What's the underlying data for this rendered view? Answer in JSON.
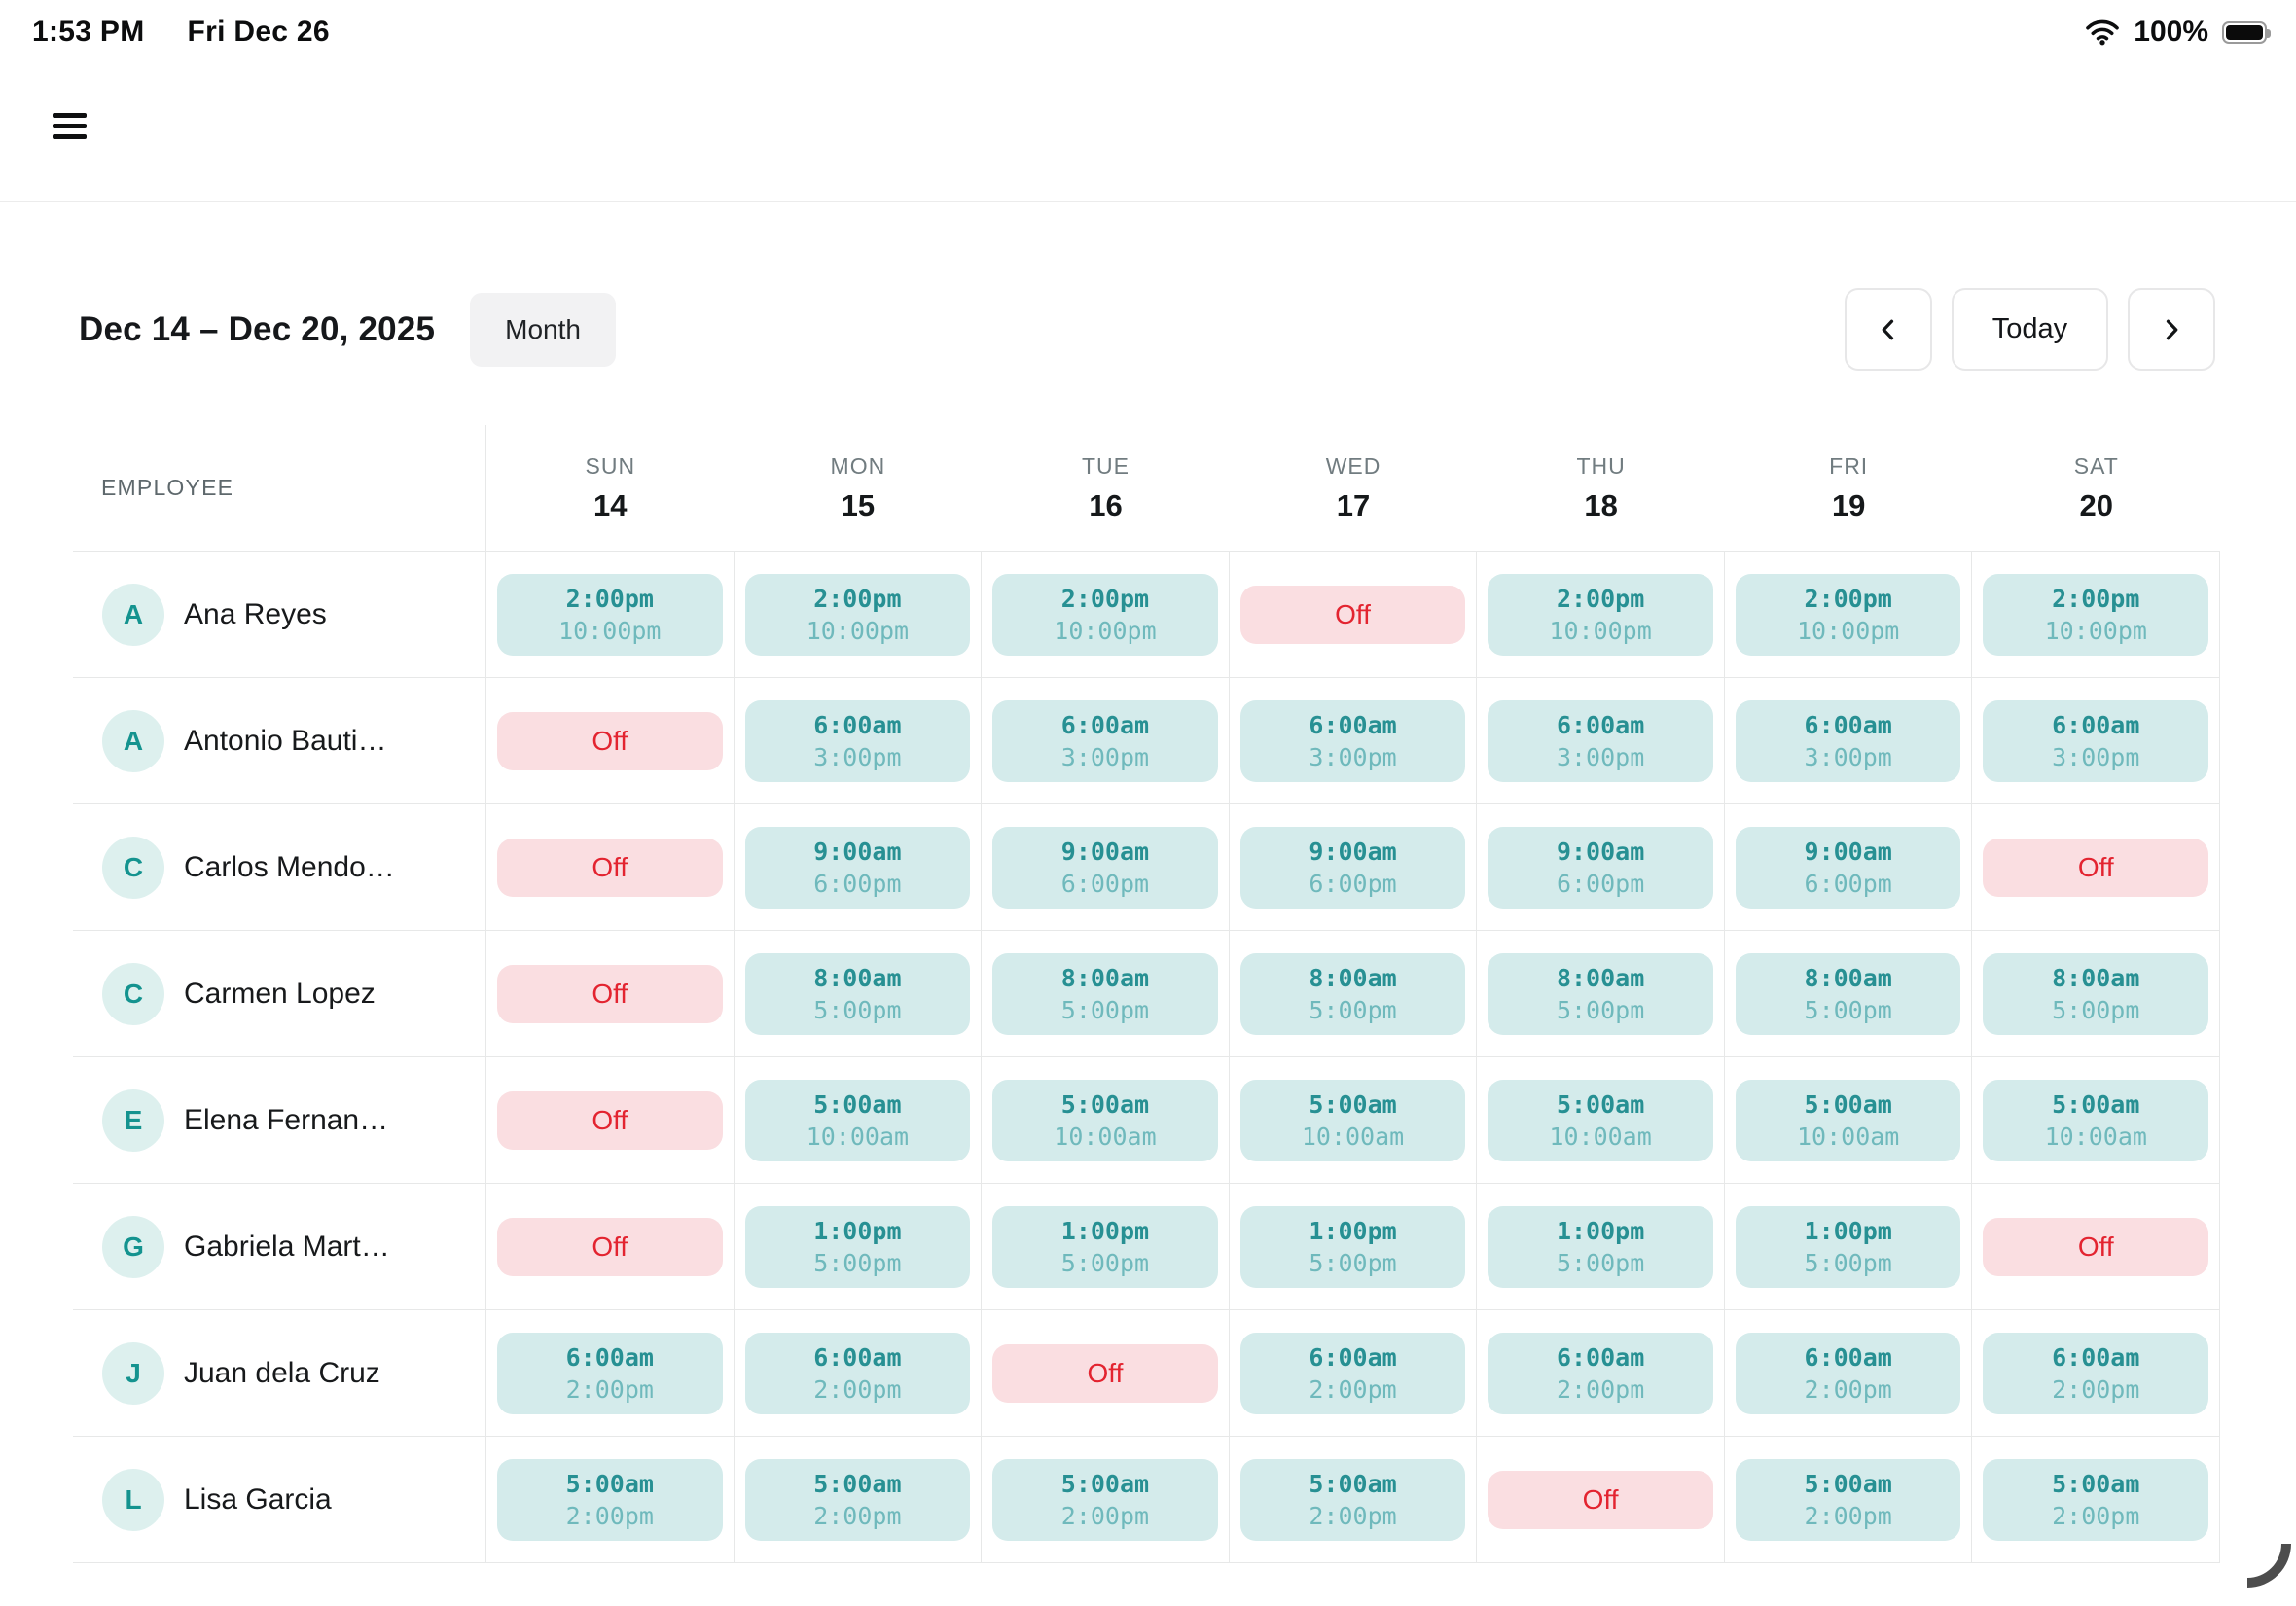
{
  "status": {
    "time": "1:53 PM",
    "date": "Fri Dec 26",
    "battery": "100%"
  },
  "toolbar": {
    "date_range": "Dec 14 – Dec 20, 2025",
    "month_label": "Month",
    "today_label": "Today"
  },
  "colors": {
    "shift_chip_bg": "#d4ebeb",
    "shift_start_text": "#279093",
    "shift_end_text": "#6fb9bc",
    "off_chip_bg": "#fadee1",
    "off_text": "#e32430",
    "avatar_bg": "#ddf0ee",
    "avatar_text": "#14938f"
  },
  "table": {
    "employee_header": "EMPLOYEE",
    "days": [
      {
        "dow": "SUN",
        "num": "14"
      },
      {
        "dow": "MON",
        "num": "15"
      },
      {
        "dow": "TUE",
        "num": "16"
      },
      {
        "dow": "WED",
        "num": "17"
      },
      {
        "dow": "THU",
        "num": "18"
      },
      {
        "dow": "FRI",
        "num": "19"
      },
      {
        "dow": "SAT",
        "num": "20"
      }
    ],
    "off_label": "Off",
    "rows": [
      {
        "initial": "A",
        "name": "Ana Reyes",
        "cells": [
          {
            "type": "shift",
            "start": "2:00pm",
            "end": "10:00pm"
          },
          {
            "type": "shift",
            "start": "2:00pm",
            "end": "10:00pm"
          },
          {
            "type": "shift",
            "start": "2:00pm",
            "end": "10:00pm"
          },
          {
            "type": "off"
          },
          {
            "type": "shift",
            "start": "2:00pm",
            "end": "10:00pm"
          },
          {
            "type": "shift",
            "start": "2:00pm",
            "end": "10:00pm"
          },
          {
            "type": "shift",
            "start": "2:00pm",
            "end": "10:00pm"
          }
        ]
      },
      {
        "initial": "A",
        "name": "Antonio Bauti…",
        "cells": [
          {
            "type": "off"
          },
          {
            "type": "shift",
            "start": "6:00am",
            "end": "3:00pm"
          },
          {
            "type": "shift",
            "start": "6:00am",
            "end": "3:00pm"
          },
          {
            "type": "shift",
            "start": "6:00am",
            "end": "3:00pm"
          },
          {
            "type": "shift",
            "start": "6:00am",
            "end": "3:00pm"
          },
          {
            "type": "shift",
            "start": "6:00am",
            "end": "3:00pm"
          },
          {
            "type": "shift",
            "start": "6:00am",
            "end": "3:00pm"
          }
        ]
      },
      {
        "initial": "C",
        "name": "Carlos Mendo…",
        "cells": [
          {
            "type": "off"
          },
          {
            "type": "shift",
            "start": "9:00am",
            "end": "6:00pm"
          },
          {
            "type": "shift",
            "start": "9:00am",
            "end": "6:00pm"
          },
          {
            "type": "shift",
            "start": "9:00am",
            "end": "6:00pm"
          },
          {
            "type": "shift",
            "start": "9:00am",
            "end": "6:00pm"
          },
          {
            "type": "shift",
            "start": "9:00am",
            "end": "6:00pm"
          },
          {
            "type": "off"
          }
        ]
      },
      {
        "initial": "C",
        "name": "Carmen Lopez",
        "cells": [
          {
            "type": "off"
          },
          {
            "type": "shift",
            "start": "8:00am",
            "end": "5:00pm"
          },
          {
            "type": "shift",
            "start": "8:00am",
            "end": "5:00pm"
          },
          {
            "type": "shift",
            "start": "8:00am",
            "end": "5:00pm"
          },
          {
            "type": "shift",
            "start": "8:00am",
            "end": "5:00pm"
          },
          {
            "type": "shift",
            "start": "8:00am",
            "end": "5:00pm"
          },
          {
            "type": "shift",
            "start": "8:00am",
            "end": "5:00pm"
          }
        ]
      },
      {
        "initial": "E",
        "name": "Elena Fernan…",
        "cells": [
          {
            "type": "off"
          },
          {
            "type": "shift",
            "start": "5:00am",
            "end": "10:00am"
          },
          {
            "type": "shift",
            "start": "5:00am",
            "end": "10:00am"
          },
          {
            "type": "shift",
            "start": "5:00am",
            "end": "10:00am"
          },
          {
            "type": "shift",
            "start": "5:00am",
            "end": "10:00am"
          },
          {
            "type": "shift",
            "start": "5:00am",
            "end": "10:00am"
          },
          {
            "type": "shift",
            "start": "5:00am",
            "end": "10:00am"
          }
        ]
      },
      {
        "initial": "G",
        "name": "Gabriela Mart…",
        "cells": [
          {
            "type": "off"
          },
          {
            "type": "shift",
            "start": "1:00pm",
            "end": "5:00pm"
          },
          {
            "type": "shift",
            "start": "1:00pm",
            "end": "5:00pm"
          },
          {
            "type": "shift",
            "start": "1:00pm",
            "end": "5:00pm"
          },
          {
            "type": "shift",
            "start": "1:00pm",
            "end": "5:00pm"
          },
          {
            "type": "shift",
            "start": "1:00pm",
            "end": "5:00pm"
          },
          {
            "type": "off"
          }
        ]
      },
      {
        "initial": "J",
        "name": "Juan dela Cruz",
        "cells": [
          {
            "type": "shift",
            "start": "6:00am",
            "end": "2:00pm"
          },
          {
            "type": "shift",
            "start": "6:00am",
            "end": "2:00pm"
          },
          {
            "type": "off"
          },
          {
            "type": "shift",
            "start": "6:00am",
            "end": "2:00pm"
          },
          {
            "type": "shift",
            "start": "6:00am",
            "end": "2:00pm"
          },
          {
            "type": "shift",
            "start": "6:00am",
            "end": "2:00pm"
          },
          {
            "type": "shift",
            "start": "6:00am",
            "end": "2:00pm"
          }
        ]
      },
      {
        "initial": "L",
        "name": "Lisa Garcia",
        "cells": [
          {
            "type": "shift",
            "start": "5:00am",
            "end": "2:00pm"
          },
          {
            "type": "shift",
            "start": "5:00am",
            "end": "2:00pm"
          },
          {
            "type": "shift",
            "start": "5:00am",
            "end": "2:00pm"
          },
          {
            "type": "shift",
            "start": "5:00am",
            "end": "2:00pm"
          },
          {
            "type": "off"
          },
          {
            "type": "shift",
            "start": "5:00am",
            "end": "2:00pm"
          },
          {
            "type": "shift",
            "start": "5:00am",
            "end": "2:00pm"
          }
        ]
      }
    ]
  }
}
